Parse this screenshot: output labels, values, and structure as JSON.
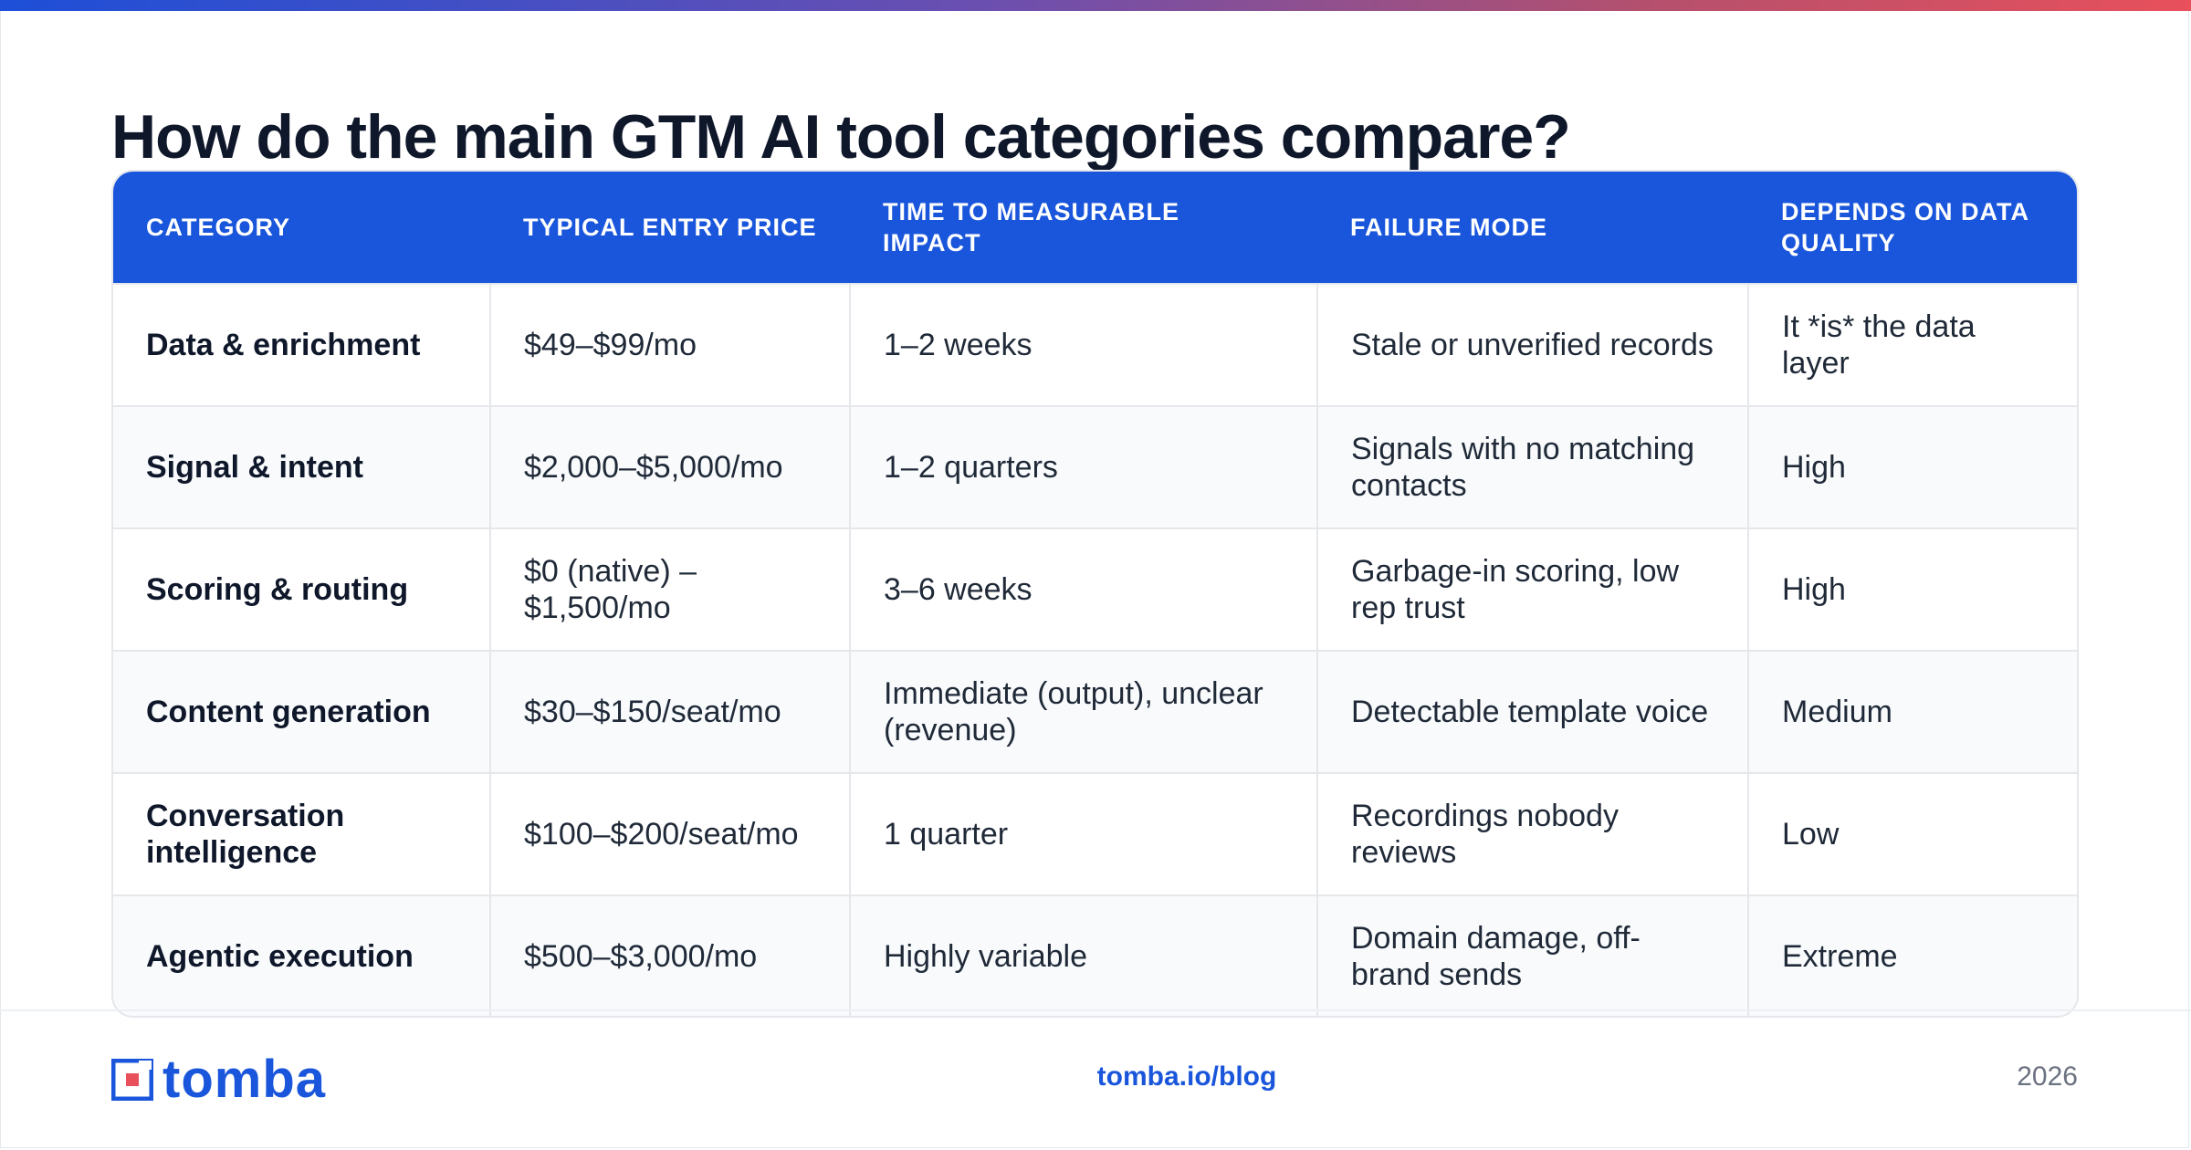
{
  "title": "How do the main GTM AI tool categories compare?",
  "table": {
    "headers": [
      "CATEGORY",
      "TYPICAL ENTRY PRICE",
      "TIME TO MEASURABLE IMPACT",
      "FAILURE MODE",
      "DEPENDS ON DATA QUALITY"
    ],
    "rows": [
      [
        "Data & enrichment",
        "$49–$99/mo",
        "1–2 weeks",
        "Stale or unverified records",
        "It *is* the data layer"
      ],
      [
        "Signal & intent",
        "$2,000–$5,000/mo",
        "1–2 quarters",
        "Signals with no matching contacts",
        "High"
      ],
      [
        "Scoring & routing",
        "$0 (native) – $1,500/mo",
        "3–6 weeks",
        "Garbage-in scoring, low rep trust",
        "High"
      ],
      [
        "Content generation",
        "$30–$150/seat/mo",
        "Immediate (output), unclear (revenue)",
        "Detectable template voice",
        "Medium"
      ],
      [
        "Conversation intelligence",
        "$100–$200/seat/mo",
        "1 quarter",
        "Recordings nobody reviews",
        "Low"
      ],
      [
        "Agentic execution",
        "$500–$3,000/mo",
        "Highly variable",
        "Domain damage, off-brand sends",
        "Extreme"
      ]
    ]
  },
  "footer": {
    "logo_text": "tomba",
    "link": "tomba.io/blog",
    "year": "2026"
  },
  "colors": {
    "accent": "#1a56db",
    "title": "#0f172a",
    "gradient": [
      "#1d4fd8",
      "#e8505b"
    ]
  }
}
